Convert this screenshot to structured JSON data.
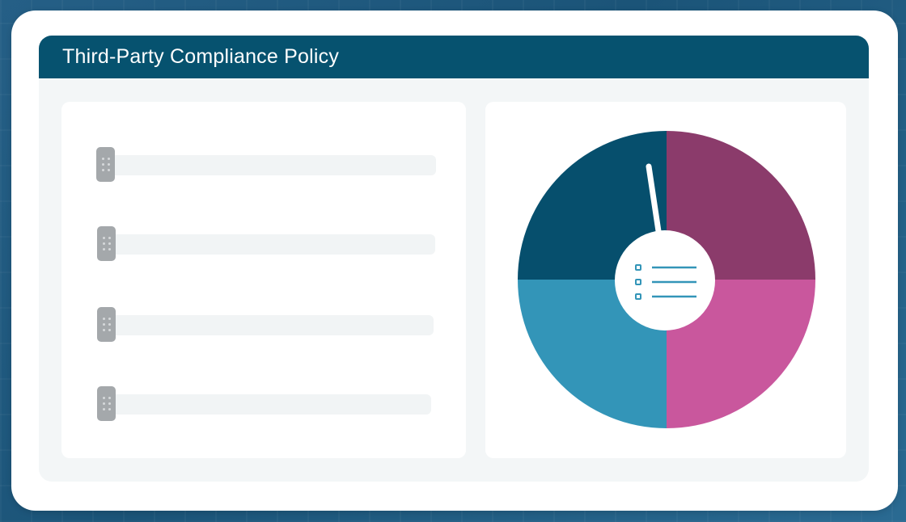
{
  "window": {
    "title": "Third-Party Compliance Policy"
  },
  "sliders": [
    {
      "name": "slider-1"
    },
    {
      "name": "slider-2"
    },
    {
      "name": "slider-3"
    },
    {
      "name": "slider-4"
    }
  ],
  "pie_chart": {
    "segments": [
      {
        "quadrant": "top-left",
        "color": "#064f6d"
      },
      {
        "quadrant": "top-right",
        "color": "#8b3b6b"
      },
      {
        "quadrant": "bottom-right",
        "color": "#c9579d"
      },
      {
        "quadrant": "bottom-left",
        "color": "#3395b8"
      }
    ],
    "center_icon": "list-icon"
  },
  "colors": {
    "background": "#1f5b82",
    "titlebar": "#06526f",
    "handle": "#a4a8ab",
    "track": "#f1f4f5"
  }
}
